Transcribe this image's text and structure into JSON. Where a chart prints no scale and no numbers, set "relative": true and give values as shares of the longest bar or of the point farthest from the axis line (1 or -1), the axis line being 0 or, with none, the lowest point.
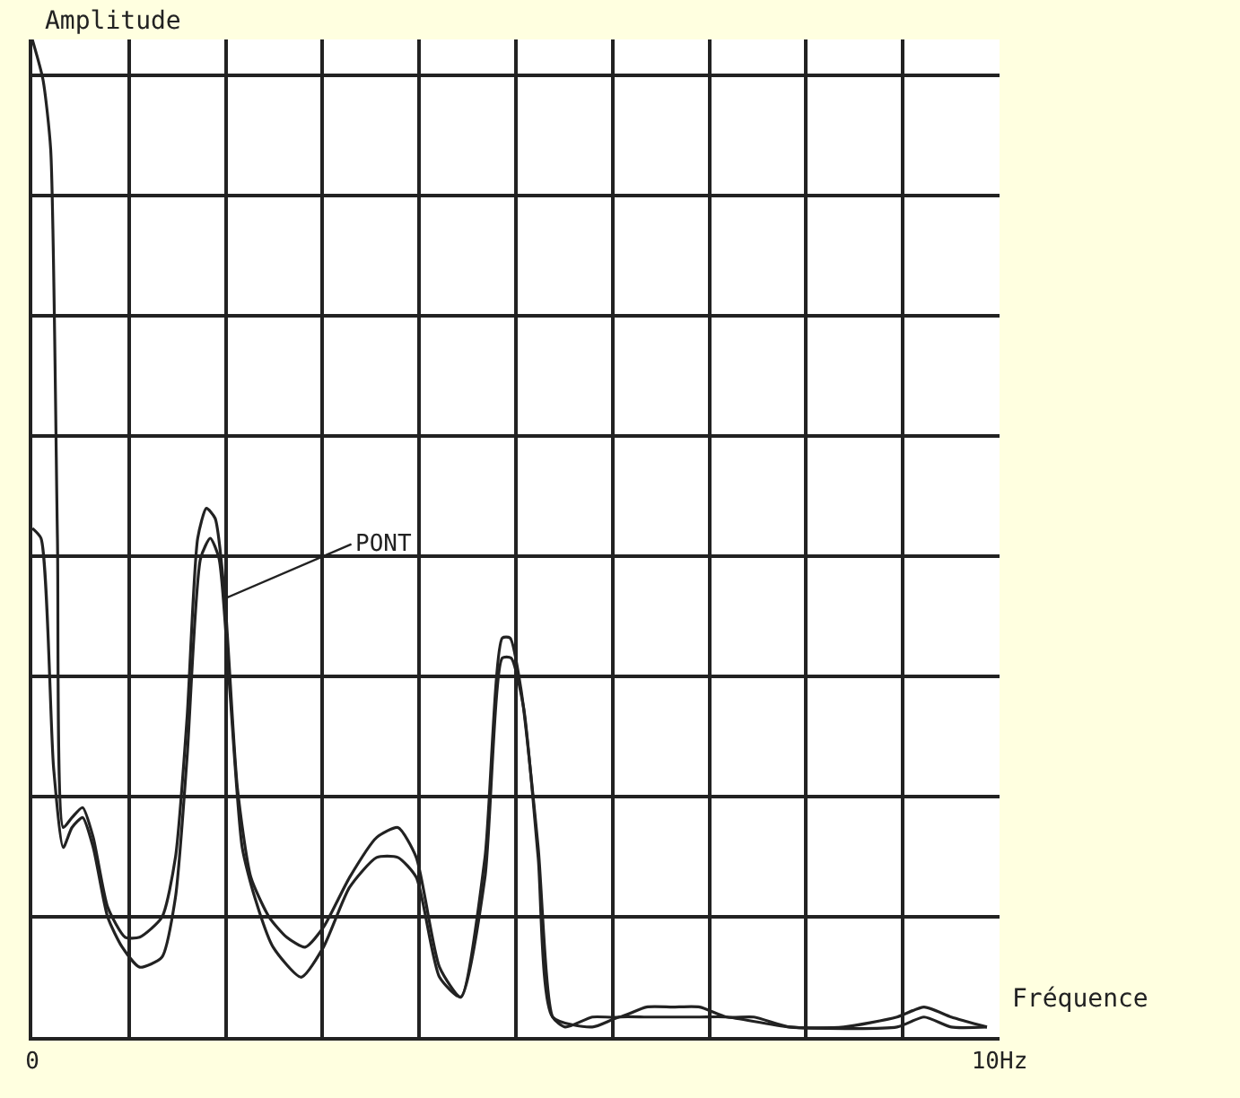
{
  "chart_data": {
    "type": "line",
    "relative": true,
    "xlabel": "Fréquence",
    "ylabel": "Amplitude",
    "xlim": [
      0,
      10
    ],
    "xticks": [
      0,
      {
        "value": 1,
        "label": null
      },
      {
        "value": 2,
        "label": null
      },
      {
        "value": 3,
        "label": null
      },
      {
        "value": 4,
        "label": null
      },
      {
        "value": 5,
        "label": null
      },
      {
        "value": 6,
        "label": null
      },
      {
        "value": 7,
        "label": null
      },
      {
        "value": 8,
        "label": null
      },
      {
        "value": 9,
        "label": null
      },
      {
        "value": 10,
        "label": "10Hz"
      }
    ],
    "grid": true,
    "marker": "none",
    "line_style": "solid",
    "annotations": [
      {
        "text": "PONT",
        "x": 2.0,
        "y": 0.44
      }
    ],
    "series": [
      {
        "color": "#222222",
        "x": [
          0,
          0.11,
          0.19,
          0.26,
          0.32,
          0.41,
          0.52,
          0.63,
          0.78,
          0.96,
          1.11,
          1.34,
          1.48,
          1.6,
          1.71,
          1.8,
          1.89,
          1.99,
          2.12,
          2.26,
          2.45,
          2.63,
          2.82,
          3.01,
          3.28,
          3.56,
          3.78,
          3.97,
          4.21,
          4.43,
          4.68,
          4.86,
          4.94,
          5.05,
          5.23,
          5.38,
          5.51,
          5.79,
          6.07,
          6.35,
          6.62,
          6.9,
          7.18,
          7.46,
          7.83,
          8.39,
          8.94,
          9.22,
          9.5,
          9.87
        ],
        "values": [
          1.0,
          0.96,
          0.89,
          0.5,
          0.21,
          0.22,
          0.23,
          0.2,
          0.13,
          0.1,
          0.1,
          0.12,
          0.18,
          0.32,
          0.5,
          0.53,
          0.52,
          0.44,
          0.25,
          0.16,
          0.12,
          0.1,
          0.09,
          0.11,
          0.16,
          0.2,
          0.21,
          0.18,
          0.07,
          0.04,
          0.18,
          0.4,
          0.4,
          0.35,
          0.19,
          0.02,
          0.01,
          0.02,
          0.02,
          0.03,
          0.03,
          0.03,
          0.02,
          0.02,
          0.01,
          0.01,
          0.02,
          0.03,
          0.02,
          0.01
        ]
      },
      {
        "color": "#222222",
        "x": [
          0,
          0.09,
          0.22,
          0.32,
          0.41,
          0.52,
          0.63,
          0.78,
          0.93,
          1.11,
          1.34,
          1.48,
          1.6,
          1.74,
          1.84,
          1.93,
          2.04,
          2.17,
          2.3,
          2.49,
          2.78,
          3.01,
          3.28,
          3.56,
          3.78,
          3.97,
          4.21,
          4.43,
          4.68,
          4.86,
          4.95,
          5.08,
          5.23,
          5.38,
          5.79,
          6.07,
          6.35,
          6.62,
          6.9,
          7.18,
          7.83,
          8.94,
          9.22,
          9.5,
          9.87
        ],
        "values": [
          0.51,
          0.5,
          0.27,
          0.19,
          0.21,
          0.22,
          0.19,
          0.12,
          0.09,
          0.07,
          0.08,
          0.14,
          0.28,
          0.48,
          0.5,
          0.48,
          0.35,
          0.19,
          0.14,
          0.09,
          0.06,
          0.09,
          0.15,
          0.18,
          0.18,
          0.16,
          0.06,
          0.04,
          0.16,
          0.38,
          0.38,
          0.33,
          0.18,
          0.02,
          0.01,
          0.02,
          0.02,
          0.02,
          0.02,
          0.02,
          0.01,
          0.01,
          0.02,
          0.01,
          0.01
        ]
      }
    ]
  }
}
